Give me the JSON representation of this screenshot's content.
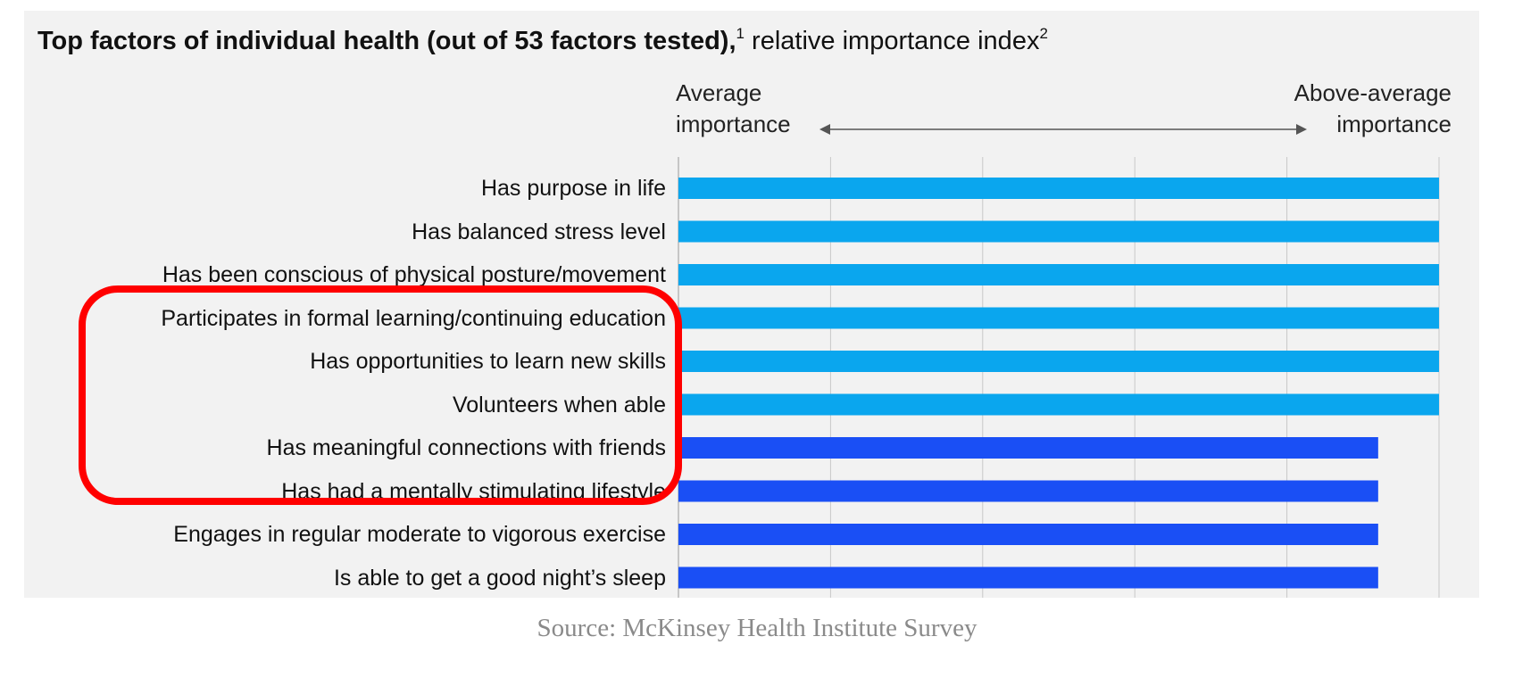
{
  "title_bold": "Top factors of individual health (out of 53 factors tested),",
  "title_bold_sup": "1",
  "title_light": " relative importance index",
  "title_light_sup": "2",
  "scale": {
    "left_line1": "Average",
    "left_line2": "importance",
    "right_line1": "Above-average",
    "right_line2": "importance"
  },
  "source": "Source: McKinsey Health Institute Survey",
  "colors": {
    "light_blue": "#0aa6ee",
    "dark_blue": "#1a4ff5",
    "highlight": "#ff0000",
    "panel": "#f2f2f2"
  },
  "chart_data": {
    "type": "bar",
    "orientation": "horizontal",
    "title": "Top factors of individual health (out of 53 factors tested), relative importance index",
    "categories": [
      "Has purpose in life",
      "Has balanced stress level",
      "Has been conscious of physical posture/movement",
      "Participates in formal learning/continuing education",
      "Has opportunities to learn new skills",
      "Volunteers when able",
      "Has meaningful connections with friends",
      "Has had a mentally stimulating lifestyle",
      "Engages in regular moderate to vigorous exercise",
      "Is able to get a good night’s sleep"
    ],
    "values": [
      5,
      5,
      5,
      5,
      5,
      5,
      4.6,
      4.6,
      4.6,
      4.6
    ],
    "color_groups": [
      "light",
      "light",
      "light",
      "light",
      "light",
      "light",
      "dark",
      "dark",
      "dark",
      "dark"
    ],
    "xlim": [
      0,
      5
    ],
    "grid": true,
    "highlighted_categories": [
      3,
      4,
      5,
      6,
      7
    ]
  }
}
